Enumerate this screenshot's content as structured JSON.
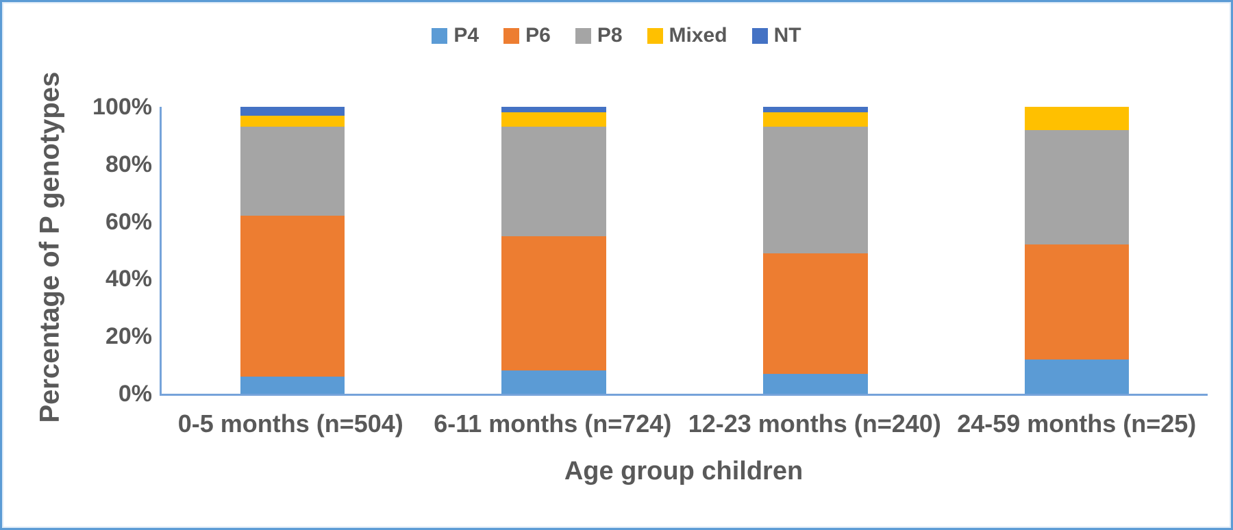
{
  "chart_data": {
    "type": "bar",
    "stacked": true,
    "title": "",
    "xlabel": "Age group children",
    "ylabel": "Percentage of P genotypes",
    "categories": [
      "0-5 months (n=504)",
      "6-11 months (n=724)",
      "12-23 months (n=240)",
      "24-59 months (n=25)"
    ],
    "series": [
      {
        "name": "P4",
        "color": "#5B9BD5",
        "values": [
          6,
          8,
          7,
          12
        ]
      },
      {
        "name": "P6",
        "color": "#ED7D31",
        "values": [
          56,
          47,
          42,
          40
        ]
      },
      {
        "name": "P8",
        "color": "#A5A5A5",
        "values": [
          31,
          38,
          44,
          40
        ]
      },
      {
        "name": "Mixed",
        "color": "#FFC000",
        "values": [
          4,
          5,
          5,
          8
        ]
      },
      {
        "name": "NT",
        "color": "#4472C4",
        "values": [
          3,
          2,
          2,
          0
        ]
      }
    ],
    "ylim": [
      0,
      100
    ],
    "yticks": [
      "0%",
      "20%",
      "40%",
      "60%",
      "80%",
      "100%"
    ],
    "grid": false,
    "legend_position": "top",
    "units": "percent"
  },
  "frame": {
    "border_color": "#5B9BD5",
    "axis_color": "#76A3DA",
    "text_color": "#595959"
  }
}
